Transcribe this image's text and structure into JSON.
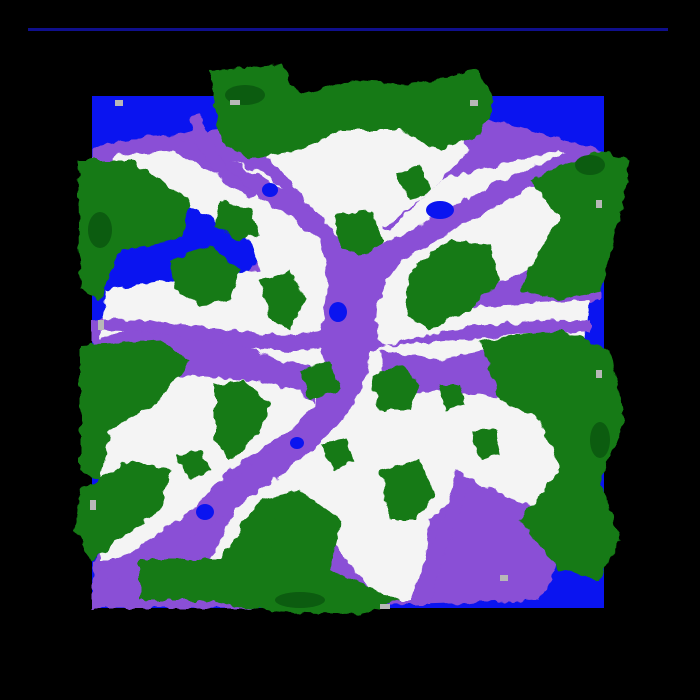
{
  "map": {
    "colors": {
      "background": "#000000",
      "rule": "#0f0f8c",
      "deep_water": "#0a14f0",
      "shallow_water": "#8a4fd6",
      "snow": "#f4f4f4",
      "forest": "#137a16",
      "forest_dark": "#0c5c10",
      "rock_edge": "#b8b8b8"
    },
    "terrain_icons": [
      "deep-water",
      "shallow-water",
      "snow",
      "forest"
    ]
  }
}
